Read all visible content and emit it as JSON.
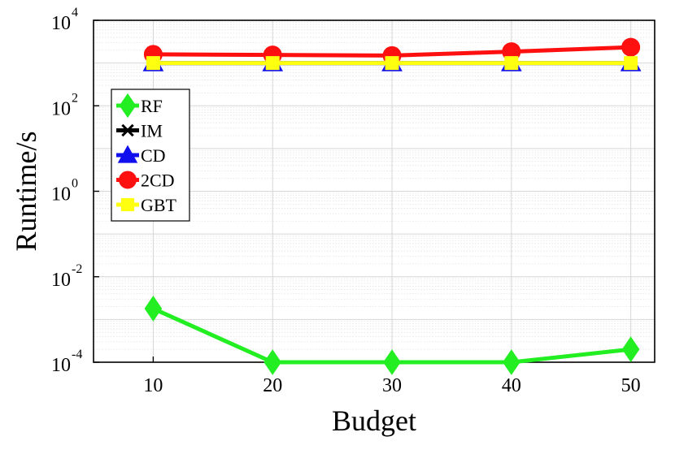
{
  "chart_data": {
    "type": "line",
    "title": "",
    "xlabel": "Budget",
    "ylabel": "Runtime/s",
    "x": [
      10,
      20,
      30,
      40,
      50
    ],
    "xlim": [
      5,
      52
    ],
    "ylim": [
      0.0001,
      10000
    ],
    "y_scale": "log",
    "grid": true,
    "legend_position": "top-left",
    "x_ticks": [
      "10",
      "20",
      "30",
      "40",
      "50"
    ],
    "y_ticks": [
      {
        "base": "10",
        "exp": "-4",
        "value": 0.0001
      },
      {
        "base": "10",
        "exp": "-2",
        "value": 0.01
      },
      {
        "base": "10",
        "exp": "0",
        "value": 1
      },
      {
        "base": "10",
        "exp": "2",
        "value": 100
      },
      {
        "base": "10",
        "exp": "4",
        "value": 10000
      }
    ],
    "series": [
      {
        "name": "RF",
        "color": "#22ee22",
        "marker": "diamond",
        "values": [
          0.0018,
          0.0001,
          0.0001,
          0.0001,
          0.0002
        ]
      },
      {
        "name": "IM",
        "color": "#000000",
        "marker": "x",
        "values": [
          1000,
          1000,
          1000,
          1000,
          1000
        ]
      },
      {
        "name": "CD",
        "color": "#1010ee",
        "marker": "triangle",
        "values": [
          1000,
          1000,
          1000,
          1000,
          1000
        ]
      },
      {
        "name": "2CD",
        "color": "#ff1010",
        "marker": "circle",
        "values": [
          1600,
          1550,
          1500,
          1850,
          2350
        ]
      },
      {
        "name": "GBT",
        "color": "#ffff10",
        "marker": "square",
        "values": [
          1000,
          1000,
          1000,
          1000,
          1000
        ]
      }
    ]
  }
}
